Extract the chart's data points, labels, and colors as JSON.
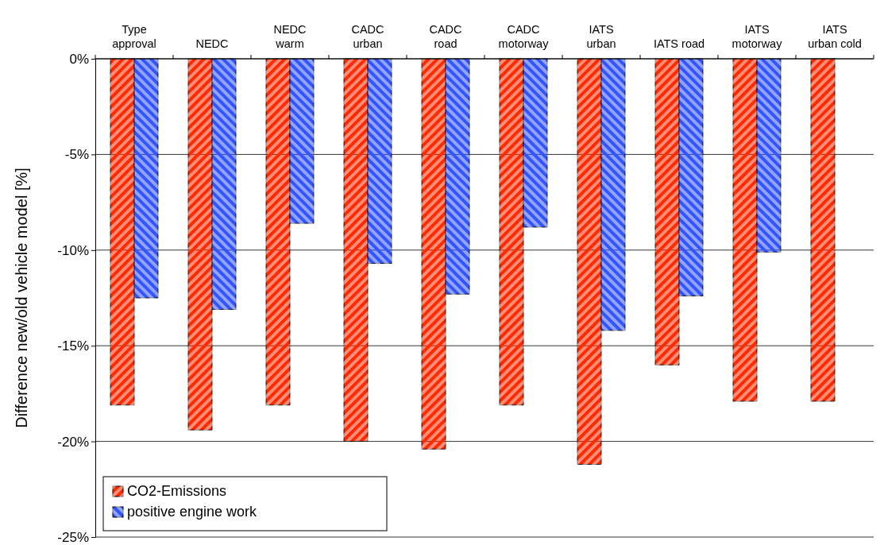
{
  "chart_data": {
    "type": "bar",
    "ylabel": "Difference new/old vehicle model [%]",
    "categories": [
      "Type\napproval",
      "NEDC",
      "NEDC\nwarm",
      "CADC\nurban",
      "CADC\nroad",
      "CADC\nmotorway",
      "IATS\nurban",
      "IATS road",
      "IATS\nmotorway",
      "IATS\nurban cold"
    ],
    "series": [
      {
        "name": "CO2-Emissions",
        "color": "#ff2a00",
        "values": [
          -18.1,
          -19.4,
          -18.1,
          -20.0,
          -20.4,
          -18.1,
          -21.2,
          -16.0,
          -17.9,
          -17.9
        ]
      },
      {
        "name": "positive engine work",
        "color": "#3355ff",
        "values": [
          -12.5,
          -13.1,
          -8.6,
          -10.7,
          -12.3,
          -8.8,
          -14.2,
          -12.4,
          -10.1,
          null
        ]
      }
    ],
    "ylim": [
      -25,
      0
    ],
    "yticks": [
      {
        "value": 0,
        "label": "0%"
      },
      {
        "value": -5,
        "label": "-5%"
      },
      {
        "value": -10,
        "label": "-10%"
      },
      {
        "value": -15,
        "label": "-15%"
      },
      {
        "value": -20,
        "label": "-20%"
      },
      {
        "value": -25,
        "label": "-25%"
      }
    ],
    "grid": "y",
    "legend": "bottom left"
  }
}
